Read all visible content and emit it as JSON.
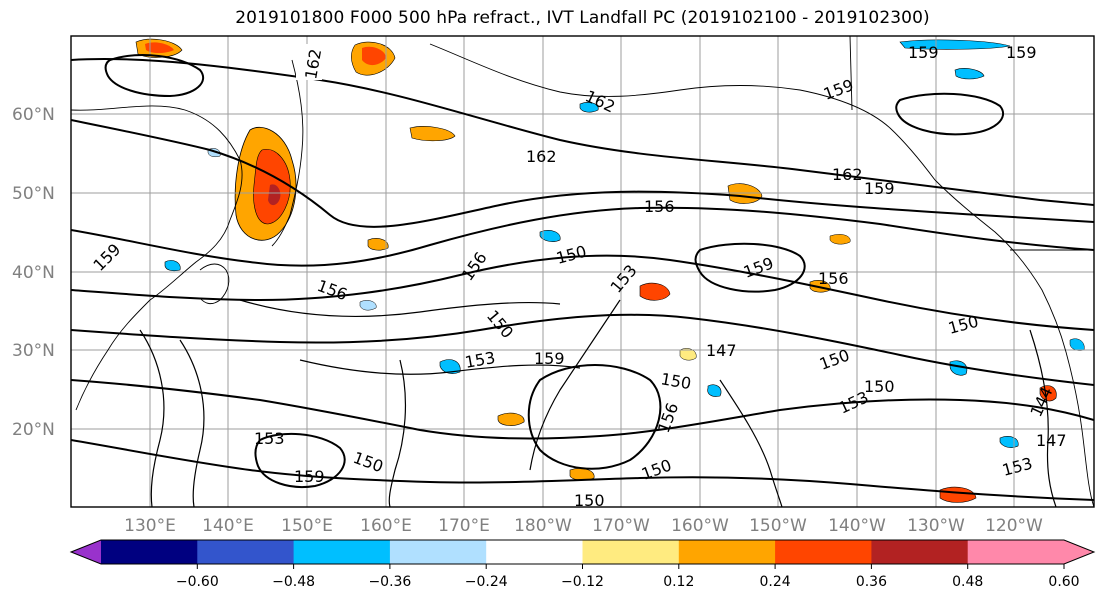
{
  "title": "2019101800 F000 500 hPa refract., IVT Landfall PC (2019102100 - 2019102300)",
  "map": {
    "lat_labels": [
      "60°N",
      "50°N",
      "40°N",
      "30°N",
      "20°N"
    ],
    "lon_labels": [
      "130°E",
      "140°E",
      "150°E",
      "160°E",
      "170°E",
      "180°W",
      "170°W",
      "160°W",
      "150°W",
      "140°W",
      "130°W",
      "120°W"
    ],
    "contour_labels": [
      {
        "text": "162"
      },
      {
        "text": "159"
      },
      {
        "text": "159"
      },
      {
        "text": "162"
      },
      {
        "text": "162"
      },
      {
        "text": "159"
      },
      {
        "text": "162"
      },
      {
        "text": "159"
      },
      {
        "text": "156"
      },
      {
        "text": "150"
      },
      {
        "text": "156"
      },
      {
        "text": "153"
      },
      {
        "text": "159"
      },
      {
        "text": "156"
      },
      {
        "text": "150"
      },
      {
        "text": "150"
      },
      {
        "text": "147"
      },
      {
        "text": "150"
      },
      {
        "text": "150"
      },
      {
        "text": "153"
      },
      {
        "text": "159"
      },
      {
        "text": "153"
      },
      {
        "text": "150"
      },
      {
        "text": "156"
      },
      {
        "text": "156"
      },
      {
        "text": "150"
      },
      {
        "text": "159"
      },
      {
        "text": "150"
      },
      {
        "text": "150"
      },
      {
        "text": "147"
      },
      {
        "text": "153"
      },
      {
        "text": "144"
      },
      {
        "text": "159"
      },
      {
        "text": "153"
      }
    ]
  },
  "colorbar": {
    "colors": [
      "#9932cc",
      "#000080",
      "#3355cc",
      "#00bfff",
      "#b0e0ff",
      "#ffffff",
      "#ffeb80",
      "#ffa500",
      "#ff4500",
      "#b22222",
      "#ff88aa",
      "#ff88aa"
    ],
    "tick_labels": [
      "−0.60",
      "−0.48",
      "−0.36",
      "−0.24",
      "−0.12",
      "0.12",
      "0.24",
      "0.36",
      "0.48",
      "0.60"
    ]
  }
}
